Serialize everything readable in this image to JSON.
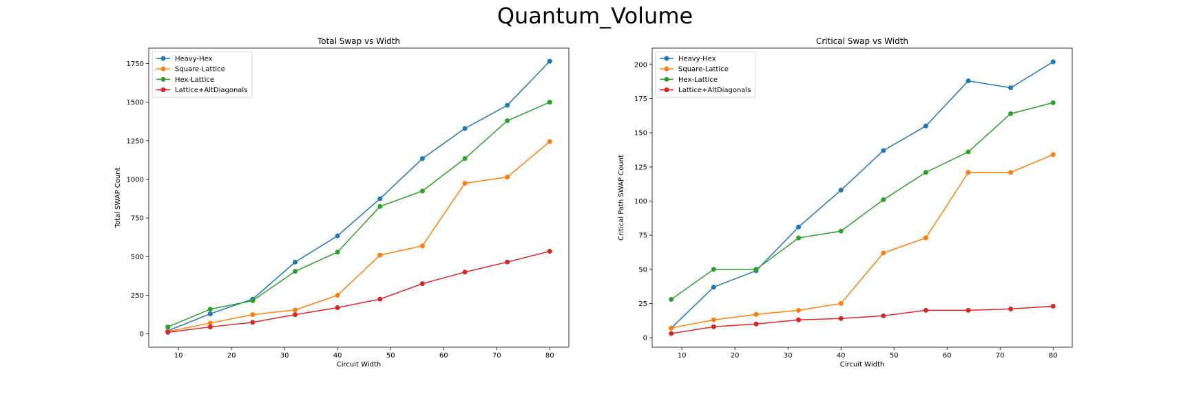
{
  "suptitle": "Quantum_Volume",
  "colors": {
    "Heavy-Hex": "#1f77b4",
    "Square-Lattice": "#ff7f0e",
    "Hex-Lattice": "#2ca02c",
    "Lattice+AltDiagonals": "#d62728"
  },
  "chart_data": [
    {
      "type": "line",
      "title": "Total Swap vs Width",
      "xlabel": "Circuit Width",
      "ylabel": "Total SWAP Count",
      "x": [
        8,
        16,
        24,
        32,
        40,
        48,
        56,
        64,
        72,
        80
      ],
      "xlim": [
        4.4,
        83.6
      ],
      "ylim": [
        -86,
        1850
      ],
      "xticks": [
        10,
        20,
        30,
        40,
        50,
        60,
        70,
        80
      ],
      "yticks": [
        0,
        250,
        500,
        750,
        1000,
        1250,
        1500,
        1750
      ],
      "grid": false,
      "legend_loc": "upper-left",
      "series": [
        {
          "name": "Heavy-Hex",
          "values": [
            20,
            130,
            225,
            465,
            635,
            875,
            1135,
            1330,
            1480,
            1765
          ]
        },
        {
          "name": "Square-Lattice",
          "values": [
            15,
            70,
            125,
            155,
            250,
            510,
            570,
            975,
            1015,
            1245
          ]
        },
        {
          "name": "Hex-Lattice",
          "values": [
            45,
            160,
            215,
            405,
            530,
            825,
            925,
            1135,
            1380,
            1500
          ]
        },
        {
          "name": "Lattice+AltDiagonals",
          "values": [
            10,
            45,
            75,
            125,
            170,
            225,
            325,
            400,
            465,
            535
          ]
        }
      ]
    },
    {
      "type": "line",
      "title": "Critical Swap vs Width",
      "xlabel": "Circuit Width",
      "ylabel": "Critical Path SWAP Count",
      "x": [
        8,
        16,
        24,
        32,
        40,
        48,
        56,
        64,
        72,
        80
      ],
      "xlim": [
        4.4,
        83.6
      ],
      "ylim": [
        -7,
        212
      ],
      "xticks": [
        10,
        20,
        30,
        40,
        50,
        60,
        70,
        80
      ],
      "yticks": [
        0,
        25,
        50,
        75,
        100,
        125,
        150,
        175,
        200
      ],
      "grid": false,
      "legend_loc": "upper-left",
      "series": [
        {
          "name": "Heavy-Hex",
          "values": [
            7,
            37,
            49,
            81,
            108,
            137,
            155,
            188,
            183,
            202
          ]
        },
        {
          "name": "Square-Lattice",
          "values": [
            7,
            13,
            17,
            20,
            25,
            62,
            73,
            121,
            121,
            134
          ]
        },
        {
          "name": "Hex-Lattice",
          "values": [
            28,
            50,
            50,
            73,
            78,
            101,
            121,
            136,
            164,
            172
          ]
        },
        {
          "name": "Lattice+AltDiagonals",
          "values": [
            3,
            8,
            10,
            13,
            14,
            16,
            20,
            20,
            21,
            23
          ]
        }
      ]
    }
  ]
}
